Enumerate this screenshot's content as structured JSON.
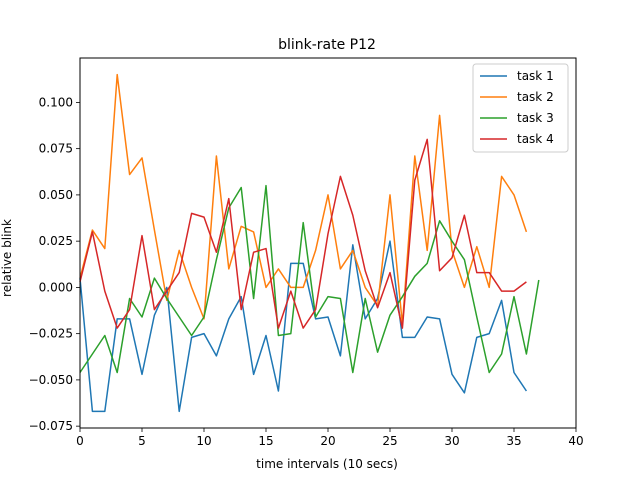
{
  "chart_data": {
    "type": "line",
    "title": "blink-rate P12",
    "xlabel": "time intervals (10 secs)",
    "ylabel": "relative blink",
    "xlim": [
      0,
      40
    ],
    "ylim": [
      -0.076,
      0.124
    ],
    "xticks": [
      0,
      5,
      10,
      15,
      20,
      25,
      30,
      35,
      40
    ],
    "yticks": [
      -0.075,
      -0.05,
      -0.025,
      0.0,
      0.025,
      0.05,
      0.075,
      0.1
    ],
    "ytick_labels": [
      "−0.075",
      "−0.050",
      "−0.025",
      "0.000",
      "0.025",
      "0.050",
      "0.075",
      "0.100"
    ],
    "grid": false,
    "legend_position": "top-right",
    "series": [
      {
        "name": "task 1",
        "color": "#1f77b4",
        "x": [
          0,
          1,
          2,
          3,
          4,
          5,
          6,
          7,
          8,
          9,
          10,
          11,
          12,
          13,
          14,
          15,
          16,
          17,
          18,
          19,
          20,
          21,
          22,
          23,
          24,
          25,
          26,
          27,
          28,
          29,
          30,
          31,
          32,
          33,
          34,
          35,
          36
        ],
        "y": [
          0.005,
          -0.067,
          -0.067,
          -0.017,
          -0.017,
          -0.047,
          -0.015,
          0.0,
          -0.067,
          -0.027,
          -0.025,
          -0.037,
          -0.017,
          -0.005,
          -0.047,
          -0.026,
          -0.056,
          0.013,
          0.013,
          -0.017,
          -0.016,
          -0.037,
          0.023,
          -0.017,
          -0.006,
          0.025,
          -0.027,
          -0.027,
          -0.016,
          -0.017,
          -0.047,
          -0.057,
          -0.027,
          -0.025,
          -0.007,
          -0.046,
          -0.056
        ]
      },
      {
        "name": "task 2",
        "color": "#ff7f0e",
        "x": [
          0,
          1,
          2,
          3,
          4,
          5,
          6,
          7,
          8,
          9,
          10,
          11,
          12,
          13,
          14,
          15,
          16,
          17,
          18,
          19,
          20,
          21,
          22,
          23,
          24,
          25,
          26,
          27,
          28,
          29,
          30,
          31,
          32,
          33,
          34,
          35,
          36
        ],
        "y": [
          0.005,
          0.031,
          0.021,
          0.115,
          0.061,
          0.07,
          0.031,
          -0.007,
          0.02,
          0.0,
          -0.017,
          0.071,
          0.01,
          0.033,
          0.03,
          0.0,
          0.01,
          0.0,
          0.0,
          0.02,
          0.05,
          0.01,
          0.02,
          0.0,
          -0.01,
          0.05,
          -0.02,
          0.071,
          0.02,
          0.093,
          0.02,
          0.0,
          0.022,
          0.0,
          0.06,
          0.05,
          0.03
        ]
      },
      {
        "name": "task 3",
        "color": "#2ca02c",
        "x": [
          0,
          1,
          2,
          3,
          4,
          5,
          6,
          7,
          8,
          9,
          10,
          11,
          12,
          13,
          14,
          15,
          16,
          17,
          18,
          19,
          20,
          21,
          22,
          23,
          24,
          25,
          26,
          27,
          28,
          29,
          30,
          31,
          32,
          33,
          34,
          35,
          36,
          37
        ],
        "y": [
          -0.046,
          -0.036,
          -0.026,
          -0.046,
          -0.006,
          -0.016,
          0.005,
          -0.006,
          -0.016,
          -0.026,
          -0.016,
          0.015,
          0.043,
          0.054,
          -0.006,
          0.055,
          -0.026,
          -0.025,
          0.035,
          -0.016,
          -0.005,
          -0.006,
          -0.046,
          -0.006,
          -0.035,
          -0.015,
          -0.005,
          0.006,
          0.013,
          0.036,
          0.025,
          0.015,
          -0.016,
          -0.046,
          -0.036,
          -0.005,
          -0.036,
          0.004
        ]
      },
      {
        "name": "task 4",
        "color": "#d62728",
        "x": [
          0,
          1,
          2,
          3,
          4,
          5,
          6,
          7,
          8,
          9,
          10,
          11,
          12,
          13,
          14,
          15,
          16,
          17,
          18,
          19,
          20,
          21,
          22,
          23,
          24,
          25,
          26,
          27,
          28,
          29,
          30,
          31,
          32,
          33,
          34,
          35,
          36
        ],
        "y": [
          0.003,
          0.03,
          -0.002,
          -0.022,
          -0.012,
          0.028,
          -0.012,
          -0.002,
          0.008,
          0.04,
          0.038,
          0.019,
          0.048,
          -0.012,
          0.019,
          0.021,
          -0.022,
          -0.002,
          -0.022,
          -0.012,
          0.029,
          0.06,
          0.039,
          0.009,
          -0.011,
          0.008,
          -0.022,
          0.058,
          0.08,
          0.009,
          0.016,
          0.039,
          0.008,
          0.008,
          -0.002,
          -0.002,
          0.003
        ]
      }
    ]
  }
}
